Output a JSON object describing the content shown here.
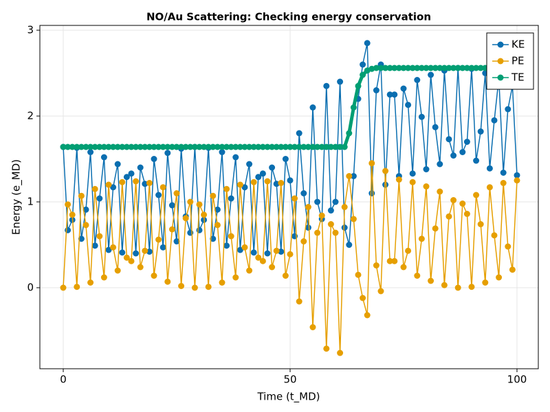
{
  "chart_data": {
    "type": "line",
    "title": "NO/Au Scattering: Checking energy conservation",
    "x_label": "Time (t_MD)",
    "y_label": "Energy (e_MD)",
    "x": [
      0,
      1,
      2,
      3,
      4,
      5,
      6,
      7,
      8,
      9,
      10,
      11,
      12,
      13,
      14,
      15,
      16,
      17,
      18,
      19,
      20,
      21,
      22,
      23,
      24,
      25,
      26,
      27,
      28,
      29,
      30,
      31,
      32,
      33,
      34,
      35,
      36,
      37,
      38,
      39,
      40,
      41,
      42,
      43,
      44,
      45,
      46,
      47,
      48,
      49,
      50,
      51,
      52,
      53,
      54,
      55,
      56,
      57,
      58,
      59,
      60,
      61,
      62,
      63,
      64,
      65,
      66,
      67,
      68,
      69,
      70,
      71,
      72,
      73,
      74,
      75,
      76,
      77,
      78,
      79,
      80,
      81,
      82,
      83,
      84,
      85,
      86,
      87,
      88,
      89,
      90,
      91,
      92,
      93,
      94,
      95,
      96,
      97,
      98,
      99,
      100
    ],
    "series": [
      {
        "name": "KE",
        "color": "#0a6eb0",
        "values": [
          1.64,
          0.67,
          0.79,
          1.63,
          0.57,
          0.91,
          1.58,
          0.49,
          1.04,
          1.52,
          0.44,
          1.17,
          1.44,
          0.41,
          1.29,
          1.33,
          0.4,
          1.4,
          1.21,
          0.42,
          1.5,
          1.08,
          0.47,
          1.57,
          0.96,
          0.54,
          1.62,
          0.83,
          0.64,
          1.64,
          0.67,
          0.79,
          1.63,
          0.57,
          0.91,
          1.58,
          0.49,
          1.04,
          1.52,
          0.44,
          1.17,
          1.44,
          0.41,
          1.29,
          1.33,
          0.4,
          1.4,
          1.21,
          0.42,
          1.5,
          1.25,
          0.6,
          1.8,
          1.1,
          0.7,
          2.1,
          1.0,
          0.8,
          2.35,
          0.9,
          1.0,
          2.4,
          0.7,
          0.5,
          1.3,
          2.2,
          2.6,
          2.85,
          1.1,
          2.3,
          2.6,
          1.2,
          2.25,
          2.25,
          1.3,
          2.32,
          2.13,
          1.33,
          2.42,
          1.99,
          1.38,
          2.48,
          1.87,
          1.44,
          2.53,
          1.73,
          1.54,
          2.56,
          1.58,
          1.7,
          2.55,
          1.48,
          1.82,
          2.5,
          1.39,
          1.95,
          2.44,
          1.34,
          2.08,
          2.35,
          1.31
        ]
      },
      {
        "name": "PE",
        "color": "#e69f00",
        "values": [
          0,
          0.97,
          0.85,
          0.01,
          1.07,
          0.73,
          0.06,
          1.15,
          0.6,
          0.12,
          1.2,
          0.47,
          0.2,
          1.23,
          0.35,
          0.31,
          1.24,
          0.24,
          0.43,
          1.22,
          0.14,
          0.56,
          1.17,
          0.07,
          0.68,
          1.1,
          0.02,
          0.81,
          1.0,
          0,
          0.97,
          0.85,
          0.01,
          1.07,
          0.73,
          0.06,
          1.15,
          0.6,
          0.12,
          1.2,
          0.47,
          0.2,
          1.23,
          0.35,
          0.31,
          1.24,
          0.24,
          0.43,
          1.22,
          0.14,
          0.39,
          1.04,
          -0.16,
          0.54,
          0.94,
          -0.46,
          0.64,
          0.84,
          -0.71,
          0.74,
          0.64,
          -0.76,
          0.94,
          1.3,
          0.8,
          0.15,
          -0.12,
          -0.32,
          1.45,
          0.26,
          -0.04,
          1.36,
          0.31,
          0.31,
          1.26,
          0.24,
          0.43,
          1.23,
          0.14,
          0.57,
          1.18,
          0.08,
          0.69,
          1.12,
          0.03,
          0.83,
          1.02,
          0,
          0.98,
          0.86,
          0.01,
          1.08,
          0.74,
          0.06,
          1.17,
          0.61,
          0.12,
          1.22,
          0.48,
          0.21,
          1.25
        ]
      },
      {
        "name": "TE",
        "color": "#009e73",
        "values": [
          1.64,
          1.64,
          1.64,
          1.64,
          1.64,
          1.64,
          1.64,
          1.64,
          1.64,
          1.64,
          1.64,
          1.64,
          1.64,
          1.64,
          1.64,
          1.64,
          1.64,
          1.64,
          1.64,
          1.64,
          1.64,
          1.64,
          1.64,
          1.64,
          1.64,
          1.64,
          1.64,
          1.64,
          1.64,
          1.64,
          1.64,
          1.64,
          1.64,
          1.64,
          1.64,
          1.64,
          1.64,
          1.64,
          1.64,
          1.64,
          1.64,
          1.64,
          1.64,
          1.64,
          1.64,
          1.64,
          1.64,
          1.64,
          1.64,
          1.64,
          1.64,
          1.64,
          1.64,
          1.64,
          1.64,
          1.64,
          1.64,
          1.64,
          1.64,
          1.64,
          1.64,
          1.64,
          1.64,
          1.8,
          2.1,
          2.35,
          2.48,
          2.53,
          2.55,
          2.56,
          2.56,
          2.56,
          2.56,
          2.56,
          2.56,
          2.56,
          2.56,
          2.56,
          2.56,
          2.56,
          2.56,
          2.56,
          2.56,
          2.56,
          2.56,
          2.56,
          2.56,
          2.56,
          2.56,
          2.56,
          2.56,
          2.56,
          2.56,
          2.56,
          2.56,
          2.56,
          2.56,
          2.56,
          2.56,
          2.56,
          2.56
        ]
      }
    ],
    "xlim": [
      -5.15,
      104.7
    ],
    "ylim": [
      -0.944,
      3.056
    ],
    "xticks": [
      0,
      50,
      100
    ],
    "yticks": [
      0,
      1,
      2,
      3
    ],
    "grid": true,
    "legend": "top-right"
  }
}
